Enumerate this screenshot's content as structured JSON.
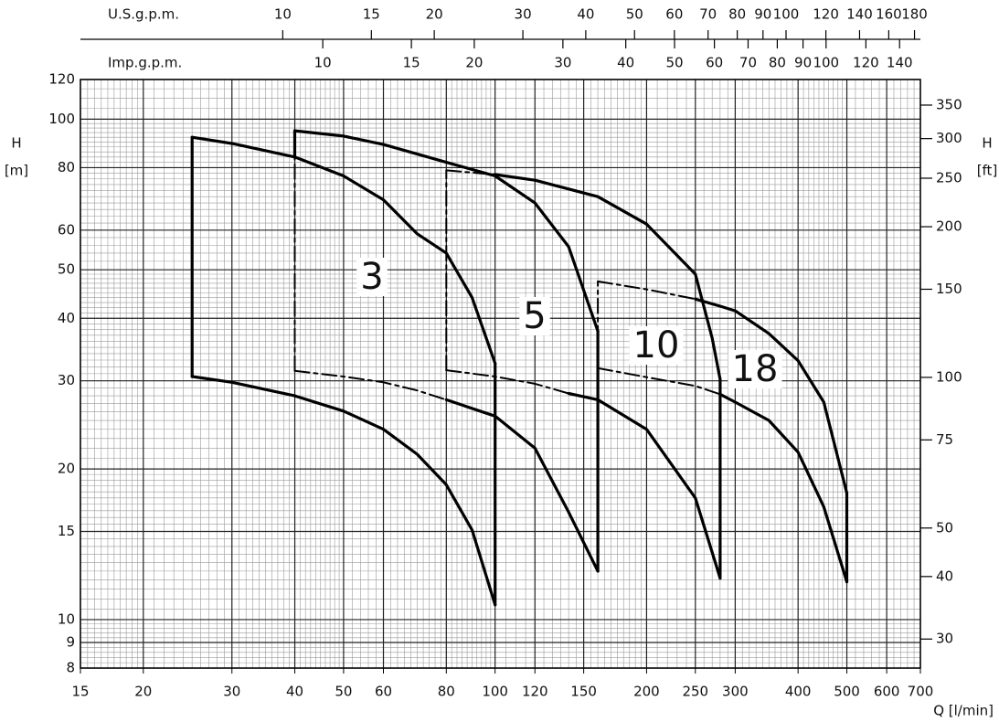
{
  "chart_data": {
    "type": "line",
    "x_label": "Q [l/min]",
    "y_label": "H",
    "y_unit": "[m]",
    "y2_label": "H",
    "y2_unit": "[ft]",
    "log_x": true,
    "log_y": true,
    "grid": true,
    "minor_grid": true,
    "color": "#000000",
    "xlim": [
      15,
      700
    ],
    "xticks": [
      15,
      20,
      30,
      40,
      50,
      60,
      80,
      100,
      120,
      150,
      200,
      250,
      300,
      400,
      500,
      600,
      700
    ],
    "ylim": [
      8,
      120
    ],
    "yticks": [
      8,
      9,
      10,
      15,
      20,
      30,
      40,
      50,
      60,
      80,
      100,
      120
    ],
    "y2lim": [
      26.25,
      393.7
    ],
    "y2ticks": [
      30,
      40,
      50,
      75,
      100,
      150,
      200,
      250,
      300,
      350
    ],
    "top_axes": [
      {
        "label": "U.S.g.p.m.",
        "lim": [
          3.9626,
          184.92
        ],
        "ticks": [
          10,
          15,
          20,
          30,
          40,
          50,
          60,
          70,
          80,
          90,
          100,
          120,
          140,
          160,
          180
        ]
      },
      {
        "label": "Imp.g.p.m.",
        "lim": [
          3.2996,
          153.98
        ],
        "ticks": [
          10,
          15,
          20,
          30,
          40,
          50,
          60,
          70,
          80,
          90,
          100,
          120,
          140
        ]
      }
    ],
    "series": [
      {
        "x": [
          25,
          30,
          40,
          50,
          60,
          70,
          80,
          90,
          100
        ],
        "values": [
          92,
          89.4,
          84,
          77,
          69,
          59,
          54,
          44,
          32.5
        ],
        "style": "solid"
      },
      {
        "x": [
          25,
          30,
          40,
          50,
          60,
          70,
          80,
          90,
          100
        ],
        "values": [
          30.6,
          29.8,
          28,
          26.1,
          24,
          21.4,
          18.6,
          15.1,
          10.7
        ],
        "style": "solid"
      },
      {
        "x": [
          25,
          25
        ],
        "values": [
          30.6,
          92
        ],
        "style": "solid"
      },
      {
        "x": [
          100,
          100
        ],
        "values": [
          10.7,
          32.5
        ],
        "style": "solid"
      },
      {
        "x": [
          40,
          50,
          60,
          80,
          100,
          120,
          140,
          160
        ],
        "values": [
          94.8,
          92.5,
          89,
          82,
          77,
          68,
          55.6,
          37.7
        ],
        "style": "solid"
      },
      {
        "x": [
          40,
          40
        ],
        "values": [
          84,
          94.8
        ],
        "style": "solid"
      },
      {
        "x": [
          40,
          40
        ],
        "values": [
          31.4,
          84
        ],
        "style": "dashed"
      },
      {
        "x": [
          40,
          50,
          60,
          70,
          80
        ],
        "values": [
          31.4,
          30.6,
          29.8,
          28.7,
          27.5
        ],
        "style": "dashed"
      },
      {
        "x": [
          80,
          100,
          120,
          140,
          160
        ],
        "values": [
          27.5,
          25.5,
          22,
          16.4,
          12.5
        ],
        "style": "solid"
      },
      {
        "x": [
          160,
          160
        ],
        "values": [
          12.5,
          37.7
        ],
        "style": "solid"
      },
      {
        "x": [
          80,
          80
        ],
        "values": [
          31.5,
          79
        ],
        "style": "dashed"
      },
      {
        "x": [
          80,
          100
        ],
        "values": [
          79,
          77.5
        ],
        "style": "dashed"
      },
      {
        "x": [
          100,
          120,
          160,
          200,
          250,
          270,
          280
        ],
        "values": [
          77.5,
          75.5,
          70,
          61.7,
          49,
          36.5,
          30.2
        ],
        "style": "solid"
      },
      {
        "x": [
          80,
          100,
          120,
          140
        ],
        "values": [
          31.5,
          30.6,
          29.6,
          28.3
        ],
        "style": "dashed"
      },
      {
        "x": [
          140,
          160,
          200,
          250,
          280
        ],
        "values": [
          28.3,
          27.5,
          24,
          17.5,
          12.1
        ],
        "style": "solid"
      },
      {
        "x": [
          280,
          280
        ],
        "values": [
          12.1,
          30.2
        ],
        "style": "solid"
      },
      {
        "x": [
          160,
          160
        ],
        "values": [
          31.8,
          47.4
        ],
        "style": "dashed"
      },
      {
        "x": [
          160,
          200,
          250
        ],
        "values": [
          47.4,
          45.7,
          43.7
        ],
        "style": "dashed"
      },
      {
        "x": [
          250,
          280,
          300,
          350,
          400,
          450,
          500
        ],
        "values": [
          43.7,
          42.3,
          41.4,
          37.3,
          32.9,
          27.2,
          17.9
        ],
        "style": "solid"
      },
      {
        "x": [
          160,
          200,
          250,
          280
        ],
        "values": [
          31.8,
          30.5,
          29.3,
          28.2
        ],
        "style": "dashed"
      },
      {
        "x": [
          280,
          300,
          350,
          400,
          450,
          500
        ],
        "values": [
          28.2,
          27.2,
          25,
          21.6,
          16.8,
          11.9
        ],
        "style": "solid"
      },
      {
        "x": [
          500,
          500
        ],
        "values": [
          11.9,
          17.9
        ],
        "style": "solid"
      }
    ],
    "annotations": [
      "3",
      "5",
      "10",
      "18"
    ]
  }
}
